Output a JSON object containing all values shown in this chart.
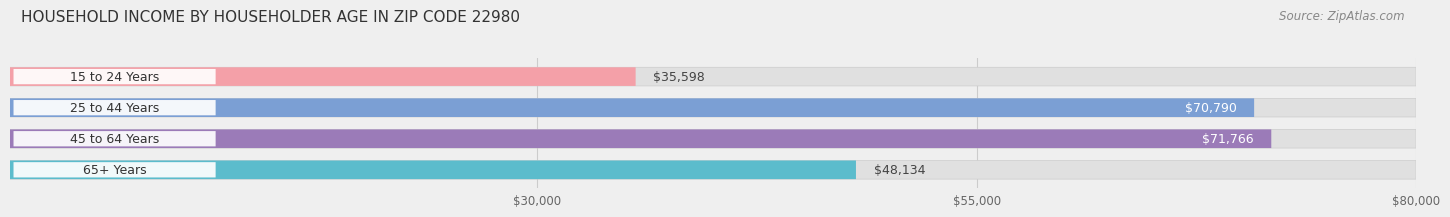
{
  "title": "HOUSEHOLD INCOME BY HOUSEHOLDER AGE IN ZIP CODE 22980",
  "source": "Source: ZipAtlas.com",
  "categories": [
    "15 to 24 Years",
    "25 to 44 Years",
    "45 to 64 Years",
    "65+ Years"
  ],
  "values": [
    35598,
    70790,
    71766,
    48134
  ],
  "bar_colors": [
    "#f4a0a8",
    "#7b9fd4",
    "#9b7bb8",
    "#5bbccc"
  ],
  "value_label_colors": [
    "#444444",
    "#ffffff",
    "#ffffff",
    "#444444"
  ],
  "xlim_min": 0,
  "xlim_max": 80000,
  "xticks": [
    30000,
    55000,
    80000
  ],
  "xtick_labels": [
    "$30,000",
    "$55,000",
    "$80,000"
  ],
  "bg_color": "#efefef",
  "bar_bg_color": "#e0e0e0",
  "title_fontsize": 11,
  "source_fontsize": 8.5,
  "label_fontsize": 9,
  "value_fontsize": 9
}
